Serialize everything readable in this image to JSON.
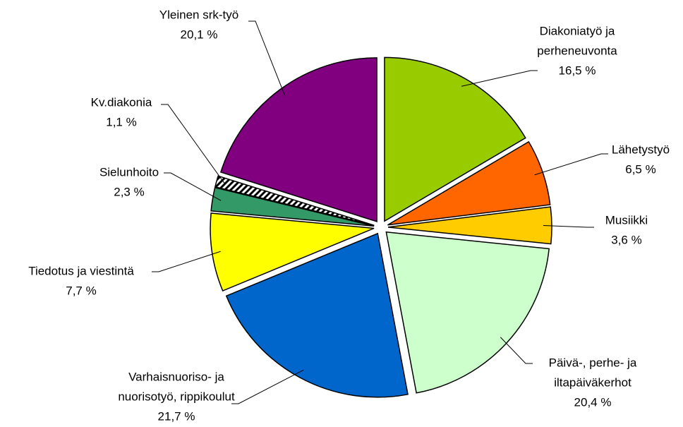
{
  "chart_data": {
    "type": "pie",
    "categories": [
      [
        "Diakoniatyö ja",
        "perheneuvonta"
      ],
      [
        "Lähetystyö"
      ],
      [
        "Musiikki"
      ],
      [
        "Päivä-, perhe- ja",
        "iltapäiväkerhot"
      ],
      [
        "Varhaisnuoriso- ja",
        "nuorisotyö, rippikoulut"
      ],
      [
        "Tiedotus ja viestintä"
      ],
      [
        "Sielunhoito"
      ],
      [
        "Kv.diakonia"
      ],
      [
        "Yleinen srk-työ"
      ]
    ],
    "values": [
      16.5,
      6.5,
      3.6,
      20.4,
      21.7,
      7.7,
      2.3,
      1.1,
      20.1
    ],
    "value_labels": [
      "16,5 %",
      "6,5 %",
      "3,6 %",
      "20,4 %",
      "21,7 %",
      "7,7 %",
      "2,3 %",
      "1,1 %",
      "20,1 %"
    ],
    "colors": [
      "#99cc00",
      "#ff6600",
      "#ffcc00",
      "#ccffcc",
      "#0066cc",
      "#ffff00",
      "#339966",
      "hatch",
      "#800080"
    ]
  }
}
